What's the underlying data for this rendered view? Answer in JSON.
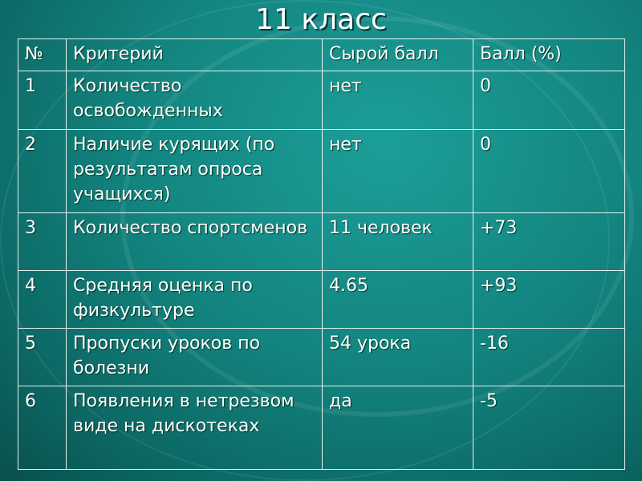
{
  "title": "11 класс",
  "headers": [
    "№",
    "Критерий",
    "Сырой балл",
    "Балл (%)"
  ],
  "rows": [
    {
      "num": "1",
      "criterion": "Количество освобожденных",
      "raw": "нет",
      "score": "0"
    },
    {
      "num": "2",
      "criterion": "Наличие курящих (по результатам опроса учащихся)",
      "raw": "нет",
      "score": "0"
    },
    {
      "num": "3",
      "criterion": "Количество спортсменов",
      "raw": "11 человек",
      "score": "+73"
    },
    {
      "num": "4",
      "criterion": "Средняя оценка по физкультуре",
      "raw": "4.65",
      "score": "+93"
    },
    {
      "num": "5",
      "criterion": "Пропуски уроков по болезни",
      "raw": "54 урока",
      "score": "-16"
    },
    {
      "num": "6",
      "criterion": "Появления в нетрезвом виде на дискотеках",
      "raw": "да",
      "score": "-5"
    }
  ],
  "colors": {
    "background": "#138580",
    "text": "#ffffff",
    "grid": "#e6f2f0"
  }
}
